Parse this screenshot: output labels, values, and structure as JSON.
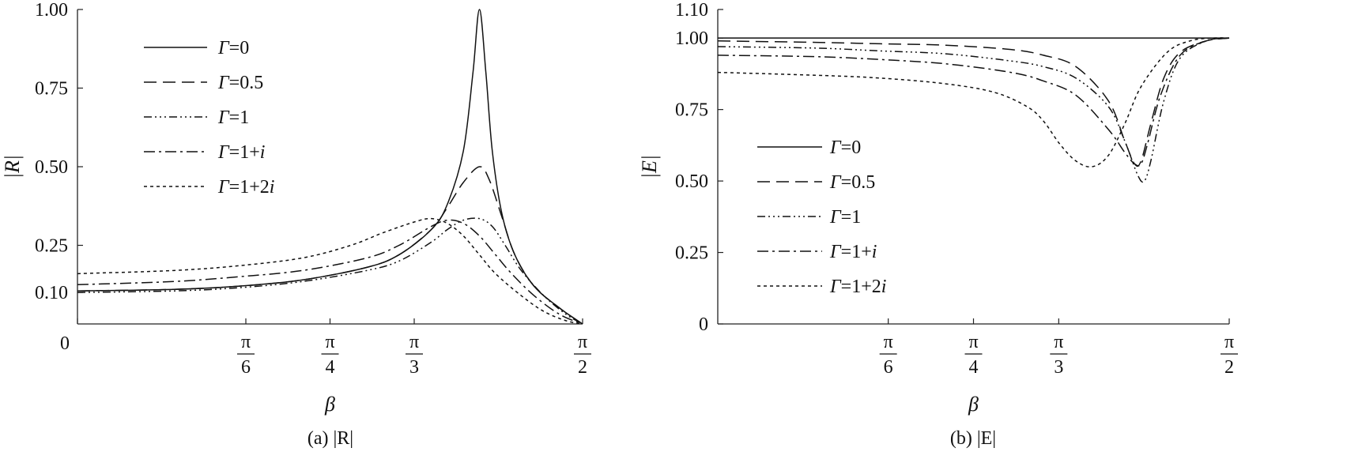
{
  "chart_data": [
    {
      "type": "line",
      "panel": "a",
      "caption": "(a) |R|",
      "xlabel": "β",
      "ylabel": "|R|",
      "xlim": [
        0,
        1.5708
      ],
      "ylim": [
        0,
        1.0
      ],
      "x_ticks": [
        {
          "value": 0,
          "label": "0"
        },
        {
          "value": 0.5236,
          "num": "π",
          "den": "6"
        },
        {
          "value": 0.7854,
          "num": "π",
          "den": "4"
        },
        {
          "value": 1.0472,
          "num": "π",
          "den": "3"
        },
        {
          "value": 1.5708,
          "num": "π",
          "den": "2"
        }
      ],
      "y_ticks": [
        {
          "value": 0.1,
          "label": "0.10"
        },
        {
          "value": 0.25,
          "label": "0.25"
        },
        {
          "value": 0.5,
          "label": "0.50"
        },
        {
          "value": 0.75,
          "label": "0.75"
        },
        {
          "value": 1.0,
          "label": "1.00"
        }
      ],
      "legend_position": "top-left",
      "series": [
        {
          "name": "Γ=0",
          "name_parts": [
            "Γ",
            "=0"
          ],
          "dash": "",
          "x": [
            0.0,
            0.3,
            0.5,
            0.7,
            0.9,
            1.0,
            1.1,
            1.15,
            1.2,
            1.23,
            1.25,
            1.27,
            1.29,
            1.32,
            1.36,
            1.42,
            1.5,
            1.5708
          ],
          "y": [
            0.105,
            0.11,
            0.12,
            0.14,
            0.18,
            0.22,
            0.3,
            0.38,
            0.55,
            0.8,
            1.0,
            0.8,
            0.55,
            0.35,
            0.22,
            0.12,
            0.05,
            0.0
          ]
        },
        {
          "name": "Γ=0.5",
          "name_parts": [
            "Γ",
            "=0.5"
          ],
          "dash": "16,8",
          "x": [
            0.0,
            0.3,
            0.5,
            0.7,
            0.9,
            1.0,
            1.1,
            1.15,
            1.2,
            1.25,
            1.28,
            1.32,
            1.36,
            1.42,
            1.5,
            1.5708
          ],
          "y": [
            0.105,
            0.11,
            0.12,
            0.14,
            0.18,
            0.22,
            0.3,
            0.37,
            0.45,
            0.5,
            0.46,
            0.34,
            0.22,
            0.12,
            0.05,
            0.0
          ]
        },
        {
          "name": "Γ=1",
          "name_parts": [
            "Γ",
            "=1"
          ],
          "dash": "10,4,2,4,2,4,2,4",
          "x": [
            0.0,
            0.3,
            0.5,
            0.7,
            0.9,
            1.0,
            1.1,
            1.15,
            1.2,
            1.25,
            1.29,
            1.33,
            1.38,
            1.45,
            1.52,
            1.5708
          ],
          "y": [
            0.1,
            0.105,
            0.115,
            0.135,
            0.17,
            0.2,
            0.26,
            0.3,
            0.33,
            0.335,
            0.31,
            0.25,
            0.17,
            0.09,
            0.03,
            0.0
          ]
        },
        {
          "name": "Γ=1+i",
          "name_parts": [
            "Γ",
            "=1+",
            "i"
          ],
          "dash": "14,5,3,5",
          "x": [
            0.0,
            0.3,
            0.5,
            0.7,
            0.9,
            1.0,
            1.1,
            1.15,
            1.2,
            1.25,
            1.3,
            1.35,
            1.42,
            1.5,
            1.5708
          ],
          "y": [
            0.125,
            0.135,
            0.15,
            0.17,
            0.21,
            0.25,
            0.31,
            0.33,
            0.32,
            0.28,
            0.22,
            0.16,
            0.09,
            0.03,
            0.0
          ]
        },
        {
          "name": "Γ=1+2i",
          "name_parts": [
            "Γ",
            "=1+2",
            "i"
          ],
          "dash": "4,4",
          "x": [
            0.0,
            0.3,
            0.5,
            0.7,
            0.85,
            0.95,
            1.05,
            1.1,
            1.15,
            1.2,
            1.25,
            1.3,
            1.38,
            1.45,
            1.52,
            1.5708
          ],
          "y": [
            0.16,
            0.17,
            0.185,
            0.21,
            0.25,
            0.29,
            0.325,
            0.335,
            0.32,
            0.28,
            0.22,
            0.16,
            0.09,
            0.04,
            0.01,
            0.0
          ]
        }
      ]
    },
    {
      "type": "line",
      "panel": "b",
      "caption": "(b) |E|",
      "xlabel": "β",
      "ylabel": "|E|",
      "xlim": [
        0,
        1.5708
      ],
      "ylim": [
        0,
        1.1
      ],
      "x_ticks": [
        {
          "value": 0.5236,
          "num": "π",
          "den": "6"
        },
        {
          "value": 0.7854,
          "num": "π",
          "den": "4"
        },
        {
          "value": 1.0472,
          "num": "π",
          "den": "3"
        },
        {
          "value": 1.5708,
          "num": "π",
          "den": "2"
        }
      ],
      "y_ticks": [
        {
          "value": 0,
          "label": "0"
        },
        {
          "value": 0.25,
          "label": "0.25"
        },
        {
          "value": 0.5,
          "label": "0.50"
        },
        {
          "value": 0.75,
          "label": "0.75"
        },
        {
          "value": 1.0,
          "label": "1.00"
        },
        {
          "value": 1.1,
          "label": "1.10"
        }
      ],
      "legend_position": "bottom-left",
      "series": [
        {
          "name": "Γ=0",
          "name_parts": [
            "Γ",
            "=0"
          ],
          "dash": "",
          "x": [
            0.0,
            1.5708
          ],
          "y": [
            1.0,
            1.0
          ]
        },
        {
          "name": "Γ=0.5",
          "name_parts": [
            "Γ",
            "=0.5"
          ],
          "dash": "16,8",
          "x": [
            0.0,
            0.3,
            0.5,
            0.7,
            0.9,
            1.0,
            1.1,
            1.2,
            1.25,
            1.28,
            1.3,
            1.33,
            1.37,
            1.42,
            1.5,
            1.5708
          ],
          "y": [
            0.99,
            0.985,
            0.98,
            0.975,
            0.96,
            0.94,
            0.9,
            0.78,
            0.64,
            0.56,
            0.57,
            0.7,
            0.86,
            0.95,
            0.99,
            1.0
          ]
        },
        {
          "name": "Γ=1",
          "name_parts": [
            "Γ",
            "=1"
          ],
          "dash": "10,4,2,4,2,4,2,4",
          "x": [
            0.0,
            0.3,
            0.5,
            0.7,
            0.9,
            1.0,
            1.1,
            1.2,
            1.25,
            1.29,
            1.31,
            1.33,
            1.37,
            1.42,
            1.5,
            1.5708
          ],
          "y": [
            0.97,
            0.965,
            0.955,
            0.945,
            0.92,
            0.9,
            0.86,
            0.76,
            0.64,
            0.52,
            0.5,
            0.57,
            0.78,
            0.93,
            0.99,
            1.0
          ]
        },
        {
          "name": "Γ=1+i",
          "name_parts": [
            "Γ",
            "=1+",
            "i"
          ],
          "dash": "14,5,3,5",
          "x": [
            0.0,
            0.3,
            0.5,
            0.7,
            0.9,
            1.0,
            1.1,
            1.2,
            1.25,
            1.28,
            1.3,
            1.32,
            1.36,
            1.42,
            1.5,
            1.5708
          ],
          "y": [
            0.94,
            0.935,
            0.925,
            0.91,
            0.88,
            0.85,
            0.8,
            0.68,
            0.6,
            0.56,
            0.56,
            0.63,
            0.8,
            0.94,
            0.99,
            1.0
          ]
        },
        {
          "name": "Γ=1+2i",
          "name_parts": [
            "Γ",
            "=1+2",
            "i"
          ],
          "dash": "4,4",
          "x": [
            0.0,
            0.3,
            0.5,
            0.7,
            0.85,
            0.95,
            1.0,
            1.05,
            1.1,
            1.15,
            1.2,
            1.25,
            1.3,
            1.38,
            1.45,
            1.52,
            1.5708
          ],
          "y": [
            0.88,
            0.87,
            0.86,
            0.84,
            0.81,
            0.76,
            0.71,
            0.63,
            0.57,
            0.55,
            0.59,
            0.7,
            0.83,
            0.95,
            0.99,
            1.0,
            1.0
          ]
        }
      ]
    }
  ]
}
